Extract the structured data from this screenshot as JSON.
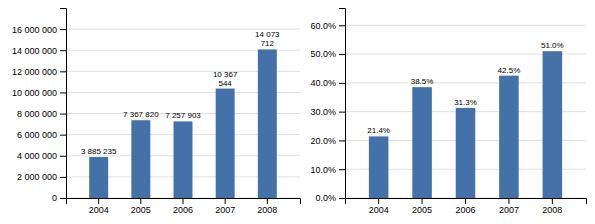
{
  "chart_data": [
    {
      "type": "bar",
      "categories": [
        "2004",
        "2005",
        "2006",
        "2007",
        "2008"
      ],
      "values": [
        3885235,
        7367820,
        7257903,
        10367544,
        14073712
      ],
      "value_labels": [
        "3 885 235",
        "7 367 820",
        "7 257 903",
        "10 367\n544",
        "14 073\n712"
      ],
      "data_labels": true,
      "color": "#4472A8",
      "ylim": [
        0,
        18000000
      ],
      "yticks": [
        0,
        {
          "value": 2000000,
          "label": "2 000 000"
        },
        {
          "value": 4000000,
          "label": "4 000 000"
        },
        {
          "value": 6000000,
          "label": "6 000 000"
        },
        {
          "value": 8000000,
          "label": "8 000 000"
        },
        {
          "value": 10000000,
          "label": "10 000 000"
        },
        {
          "value": 12000000,
          "label": "12 000 000"
        },
        {
          "value": 14000000,
          "label": "14 000 000"
        },
        {
          "value": 16000000,
          "label": "16 000 000"
        }
      ],
      "grid": true
    },
    {
      "type": "bar",
      "categories": [
        "2004",
        "2005",
        "2006",
        "2007",
        "2008"
      ],
      "values": [
        0.214,
        0.385,
        0.313,
        0.425,
        0.51
      ],
      "value_labels": [
        "21.4%",
        "38.5%",
        "31.3%",
        "42.5%",
        "51.0%"
      ],
      "data_labels": true,
      "color": "#4472A8",
      "ylim": [
        0,
        0.66
      ],
      "yticks": [
        {
          "value": 0.0,
          "label": "0.0%"
        },
        {
          "value": 0.1,
          "label": "10.0%"
        },
        {
          "value": 0.2,
          "label": "20.0%"
        },
        {
          "value": 0.3,
          "label": "30.0%"
        },
        {
          "value": 0.4,
          "label": "40.0%"
        },
        {
          "value": 0.5,
          "label": "50.0%"
        },
        {
          "value": 0.6,
          "label": "60.0%"
        }
      ],
      "grid": true
    }
  ]
}
